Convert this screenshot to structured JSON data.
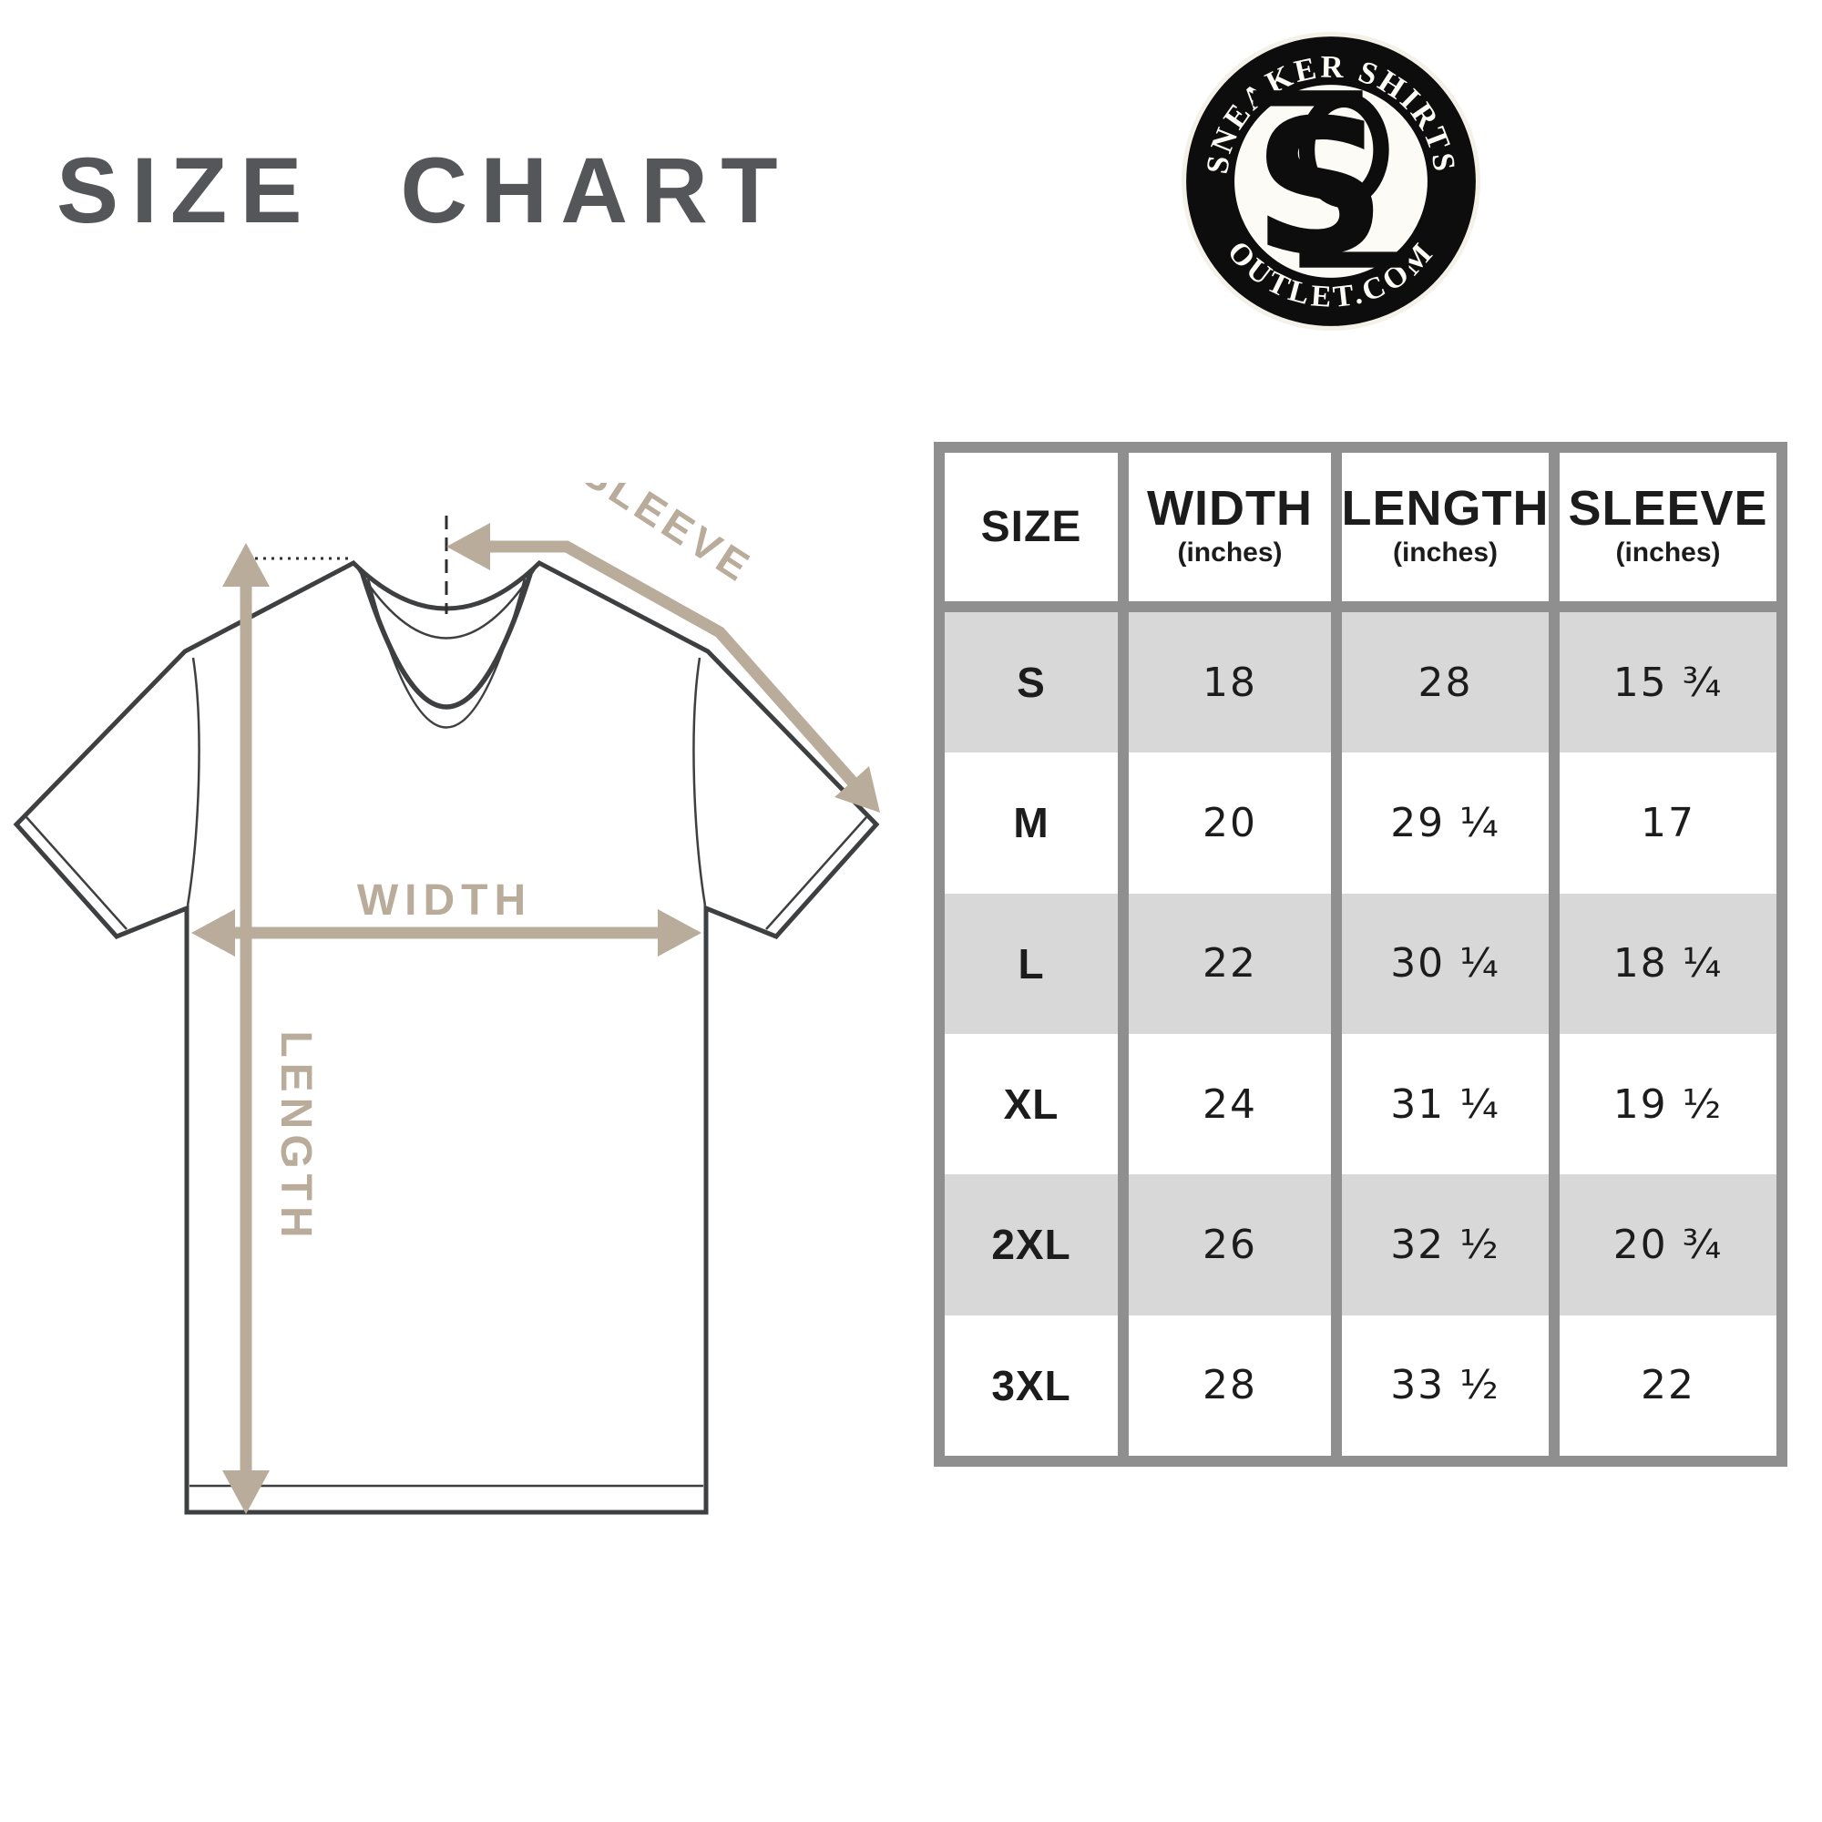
{
  "title": "SIZE CHART",
  "logo": {
    "top_text": "SNEAKER SHIRTS",
    "bottom_text": "OUTLET.COM",
    "monogram_letter": "S",
    "ring_color": "#0d0d0d",
    "text_color": "#fdfbf5"
  },
  "diagram": {
    "labels": {
      "sleeve": "SLEEVE",
      "width": "WIDTH",
      "length": "LENGTH"
    },
    "arrow_color": "#b9ac9b",
    "outline_color": "#3e3f41"
  },
  "table": {
    "columns": [
      {
        "label": "SIZE",
        "sub": ""
      },
      {
        "label": "WIDTH",
        "sub": "(inches)"
      },
      {
        "label": "LENGTH",
        "sub": "(inches)"
      },
      {
        "label": "SLEEVE",
        "sub": "(inches)"
      }
    ],
    "rows": [
      {
        "size": "S",
        "width": "18",
        "length": "28",
        "sleeve": "15 ¾",
        "shaded": true
      },
      {
        "size": "M",
        "width": "20",
        "length": "29 ¼",
        "sleeve": "17",
        "shaded": false
      },
      {
        "size": "L",
        "width": "22",
        "length": "30 ¼",
        "sleeve": "18 ¼",
        "shaded": true
      },
      {
        "size": "XL",
        "width": "24",
        "length": "31 ¼",
        "sleeve": "19 ½",
        "shaded": false
      },
      {
        "size": "2XL",
        "width": "26",
        "length": "32 ½",
        "sleeve": "20 ¾",
        "shaded": true
      },
      {
        "size": "3XL",
        "width": "28",
        "length": "33 ½",
        "sleeve": "22",
        "shaded": false
      }
    ],
    "shaded_row_color": "#d8d8d8",
    "grid_color": "#8f8f8f"
  },
  "chart_data": {
    "type": "table",
    "title": "SIZE CHART",
    "columns": [
      "SIZE",
      "WIDTH (inches)",
      "LENGTH (inches)",
      "SLEEVE (inches)"
    ],
    "categories": [
      "S",
      "M",
      "L",
      "XL",
      "2XL",
      "3XL"
    ],
    "series": [
      {
        "name": "WIDTH (inches)",
        "values": [
          18,
          20,
          22,
          24,
          26,
          28
        ]
      },
      {
        "name": "LENGTH (inches)",
        "values": [
          28,
          29.25,
          30.25,
          31.25,
          32.5,
          33.5
        ]
      },
      {
        "name": "SLEEVE (inches)",
        "values": [
          15.75,
          17,
          18.25,
          19.5,
          20.75,
          22
        ]
      }
    ]
  }
}
